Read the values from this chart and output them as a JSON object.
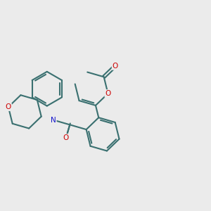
{
  "background_color": "#ebebeb",
  "bond_color": "#3a7070",
  "atom_colors": {
    "O": "#cc0000",
    "N": "#1414cc"
  },
  "bond_width": 1.5,
  "figsize": [
    3.0,
    3.0
  ],
  "dpi": 100
}
